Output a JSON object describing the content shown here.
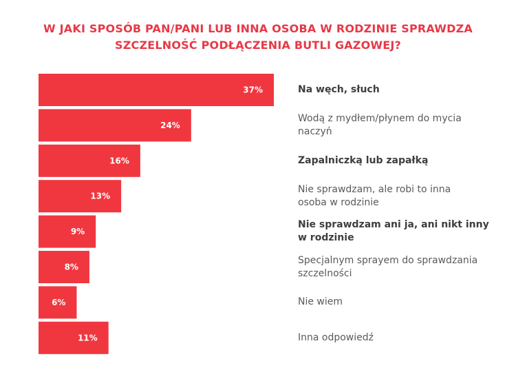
{
  "chart_data": {
    "type": "bar",
    "orientation": "horizontal",
    "title_lines": [
      "W JAKI SPOSÓB PAN/PANI LUB INNA OSOBA W RODZINIE SPRAWDZA",
      "SZCZELNOŚĆ PODŁĄCZENIA BUTLI GAZOWEJ?"
    ],
    "categories": [
      "Na węch, słuch",
      "Wodą z mydłem/płynem do mycia naczyń",
      "Zapalniczką lub zapałką",
      "Nie sprawdzam, ale robi to inna osoba w rodzinie",
      "Nie sprawdzam ani ja, ani nikt inny w rodzinie",
      "Specjalnym sprayem do sprawdzania szczelności",
      "Nie wiem",
      "Inna odpowiedź"
    ],
    "category_lines": [
      [
        "Na węch, słuch"
      ],
      [
        "Wodą z mydłem/płynem do mycia",
        "naczyń"
      ],
      [
        "Zapalniczką lub zapałką"
      ],
      [
        "Nie sprawdzam, ale robi to inna",
        "osoba w rodzinie"
      ],
      [
        "Nie sprawdzam ani ja, ani nikt inny",
        "w rodzinie"
      ],
      [
        "Specjalnym sprayem do sprawdzania",
        "szczelności"
      ],
      [
        "Nie wiem"
      ],
      [
        "Inna odpowiedź"
      ]
    ],
    "bold_categories": [
      true,
      false,
      true,
      false,
      true,
      false,
      false,
      false
    ],
    "values": [
      37,
      24,
      16,
      13,
      9,
      8,
      6,
      11
    ],
    "value_labels": [
      "37%",
      "24%",
      "16%",
      "13%",
      "9%",
      "8%",
      "6%",
      "11%"
    ],
    "unit": "%",
    "xlim": [
      0,
      37
    ],
    "bar_color": "#f0373f",
    "title_color": "#e63946",
    "label_color": "#5a5a5a",
    "grid": false,
    "legend": "none"
  }
}
